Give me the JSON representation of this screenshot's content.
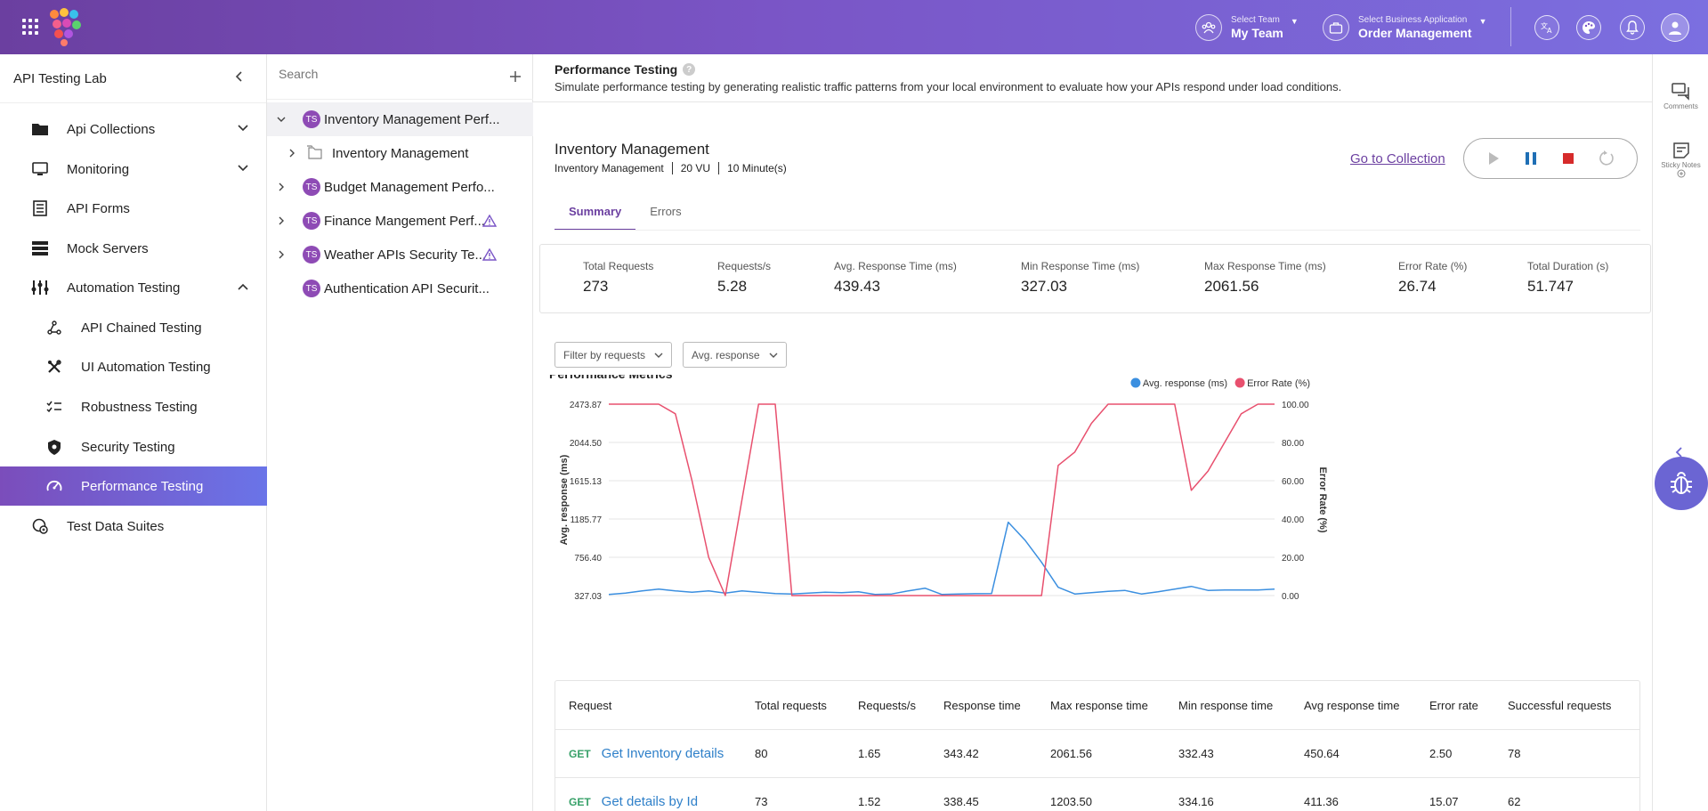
{
  "topbar": {
    "team_label": "Select Team",
    "team_value": "My Team",
    "app_label": "Select Business Application",
    "app_value": "Order Management",
    "brand_colors": [
      "#6b3fa0",
      "#7b6fe0"
    ]
  },
  "leftnav": {
    "title": "API Testing Lab",
    "items": [
      {
        "label": "Api Collections",
        "icon": "folder-icon"
      },
      {
        "label": "Monitoring",
        "icon": "monitor-icon"
      },
      {
        "label": "API Forms",
        "icon": "form-icon"
      },
      {
        "label": "Mock Servers",
        "icon": "server-icon"
      },
      {
        "label": "Automation Testing",
        "icon": "automation-icon"
      },
      {
        "label": "API Chained Testing",
        "icon": "chain-icon"
      },
      {
        "label": "UI Automation Testing",
        "icon": "tools-icon"
      },
      {
        "label": "Robustness Testing",
        "icon": "checklist-icon"
      },
      {
        "label": "Security Testing",
        "icon": "shield-icon"
      },
      {
        "label": "Performance Testing",
        "icon": "speedometer-icon"
      },
      {
        "label": "Test Data Suites",
        "icon": "data-suite-icon"
      }
    ],
    "active_color": "#7b4dbb"
  },
  "tree": {
    "search_placeholder": "Search",
    "badge": "TS",
    "items": [
      {
        "label": "Inventory Management Perf..."
      },
      {
        "label": "Inventory Management"
      },
      {
        "label": "Budget Management Perfo..."
      },
      {
        "label": "Finance Mangement Perf..."
      },
      {
        "label": "Weather APIs Security Te..."
      },
      {
        "label": "Authentication API Securit..."
      }
    ]
  },
  "main": {
    "page_title": "Performance Testing",
    "help": "?",
    "description": "Simulate performance testing by generating realistic traffic patterns from your local environment to evaluate how your APIs respond under load conditions.",
    "collection_title": "Inventory Management",
    "meta": [
      "Inventory Management",
      "20 VU",
      "10 Minute(s)"
    ],
    "goto_label": "Go to Collection",
    "tabs": [
      "Summary",
      "Errors"
    ],
    "stats": [
      {
        "label": "Total Requests",
        "value": "273"
      },
      {
        "label": "Requests/s",
        "value": "5.28"
      },
      {
        "label": "Avg. Response Time (ms)",
        "value": "439.43"
      },
      {
        "label": "Min Response Time (ms)",
        "value": "327.03"
      },
      {
        "label": "Max Response Time (ms)",
        "value": "2061.56"
      },
      {
        "label": "Error Rate (%)",
        "value": "26.74"
      },
      {
        "label": "Total Duration (s)",
        "value": "51.747"
      }
    ],
    "filter_label": "Filter by requests",
    "metric_label": "Avg. response",
    "table": {
      "headers": [
        "Request",
        "Total requests",
        "Requests/s",
        "Response time",
        "Max response time",
        "Min response time",
        "Avg response time",
        "Error rate",
        "Successful requests"
      ],
      "rows": [
        {
          "method": "GET",
          "name": "Get Inventory details",
          "cells": [
            "80",
            "1.65",
            "343.42",
            "2061.56",
            "332.43",
            "450.64",
            "2.50",
            "78"
          ]
        },
        {
          "method": "GET",
          "name": "Get details by Id",
          "cells": [
            "73",
            "1.52",
            "338.45",
            "1203.50",
            "334.16",
            "411.36",
            "15.07",
            "62"
          ]
        }
      ]
    }
  },
  "rail": {
    "comments": "Comments",
    "sticky_notes": "Sticky Notes"
  },
  "chart_data": {
    "type": "line",
    "title": "Performance Metrics",
    "ylabel": "Avg. response (ms)",
    "y2label": "Error Rate (%)",
    "ylim": [
      327.03,
      2473.87
    ],
    "y2lim": [
      0,
      100
    ],
    "y_ticks": [
      "2473.87",
      "2044.50",
      "1615.13",
      "1185.77",
      "756.40",
      "327.03"
    ],
    "y2_ticks": [
      "100.00",
      "80.00",
      "60.00",
      "40.00",
      "20.00",
      "0.00"
    ],
    "legend_position": "top-right",
    "x": [
      0,
      1,
      2,
      3,
      4,
      5,
      6,
      7,
      8,
      9,
      10,
      11,
      12,
      13,
      14,
      15,
      16,
      17,
      18,
      19,
      20,
      21,
      22,
      23,
      24,
      25,
      26,
      27,
      28,
      29,
      30,
      31,
      32,
      33,
      34,
      35,
      36,
      37,
      38,
      39,
      40
    ],
    "series": [
      {
        "name": "Avg. response (ms)",
        "color": "#3b8fe0",
        "axis": "left",
        "values": [
          340,
          355,
          380,
          400,
          380,
          365,
          380,
          355,
          380,
          365,
          350,
          345,
          355,
          365,
          360,
          370,
          340,
          345,
          380,
          410,
          340,
          345,
          348,
          350,
          1150,
          950,
          700,
          420,
          345,
          360,
          375,
          385,
          345,
          370,
          400,
          430,
          385,
          390,
          390,
          390,
          400
        ]
      },
      {
        "name": "Error Rate (%)",
        "color": "#e8506e",
        "axis": "right",
        "values": [
          100,
          100,
          100,
          100,
          95,
          60,
          20,
          0,
          50,
          100,
          100,
          0,
          0,
          0,
          0,
          0,
          0,
          0,
          0,
          0,
          0,
          0,
          0,
          0,
          0,
          0,
          0,
          68,
          75,
          90,
          100,
          100,
          100,
          100,
          100,
          55,
          65,
          80,
          95,
          100,
          100
        ]
      }
    ]
  }
}
